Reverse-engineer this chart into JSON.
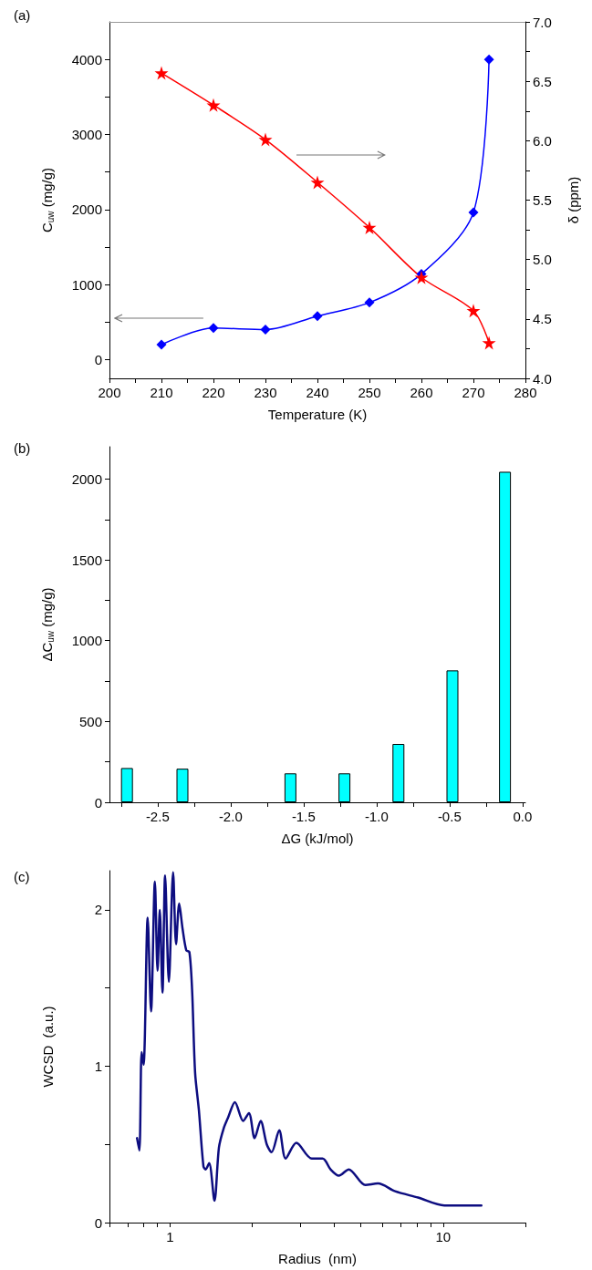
{
  "chart_data": [
    {
      "type": "line",
      "title": "(a)",
      "xlabel": "Temperature (K)",
      "ylabel": "C$_{uw}$ (mg/g)",
      "y2label": "δ (ppm)",
      "x": [
        210,
        220,
        230,
        240,
        250,
        260,
        270,
        273
      ],
      "series": [
        {
          "color": "#0000ff",
          "marker": "diamond",
          "values": [
            200,
            420,
            400,
            580,
            760,
            1140,
            1960,
            4000
          ]
        },
        {
          "color": "#ff0000",
          "marker": "star",
          "axis": "y2",
          "values": [
            6.57,
            6.3,
            6.01,
            5.65,
            5.27,
            4.85,
            4.57,
            4.3
          ]
        }
      ],
      "xlim": [
        200,
        280
      ],
      "xticks": [
        200,
        {
          "value": 205,
          "label": null
        },
        210,
        {
          "value": 215,
          "label": null
        },
        220,
        {
          "value": 225,
          "label": null
        },
        230,
        {
          "value": 235,
          "label": null
        },
        240,
        {
          "value": 245,
          "label": null
        },
        250,
        {
          "value": 255,
          "label": null
        },
        260,
        {
          "value": 265,
          "label": null
        },
        270,
        {
          "value": 275,
          "label": null
        },
        280
      ],
      "ylim": [
        -250,
        4500
      ],
      "yticks": [
        0,
        {
          "value": 500,
          "label": null
        },
        1000,
        {
          "value": 1500,
          "label": null
        },
        2000,
        {
          "value": 2500,
          "label": null
        },
        3000,
        {
          "value": 3500,
          "label": null
        },
        4000
      ],
      "y2lim": [
        4.0,
        7.0
      ],
      "y2ticks": [
        {
          "value": 4,
          "label": "4.0"
        },
        {
          "value": 4.25,
          "label": null
        },
        {
          "value": 4.5,
          "label": "4.5"
        },
        {
          "value": 4.75,
          "label": null
        },
        {
          "value": 5,
          "label": "5.0"
        },
        {
          "value": 5.25,
          "label": null
        },
        {
          "value": 5.5,
          "label": "5.5"
        },
        {
          "value": 5.75,
          "label": null
        },
        {
          "value": 6,
          "label": "6.0"
        },
        {
          "value": 6.25,
          "label": null
        },
        {
          "value": 6.5,
          "label": "6.5"
        },
        {
          "value": 6.75,
          "label": null
        },
        {
          "value": 7,
          "label": "7.0"
        }
      ],
      "grid": false,
      "line_style": "solid"
    },
    {
      "type": "bar",
      "title": "(b)",
      "xlabel": "ΔG (kJ/mol)",
      "ylabel": "ΔC$_{uw}$ (mg/g)",
      "x": [
        -2.71,
        -2.33,
        -1.59,
        -1.22,
        -0.85,
        -0.48,
        -0.12
      ],
      "values": [
        212,
        208,
        179,
        179,
        361,
        816,
        2045
      ],
      "color": "#00ffff",
      "xlim": [
        -2.83,
        0.02
      ],
      "xticks": [
        {
          "value": -2.75,
          "label": null
        },
        {
          "value": -2.5,
          "label": "-2.5"
        },
        {
          "value": -2.25,
          "label": null
        },
        {
          "value": -2,
          "label": "-2.0"
        },
        {
          "value": -1.75,
          "label": null
        },
        {
          "value": -1.5,
          "label": "-1.5"
        },
        {
          "value": -1.25,
          "label": null
        },
        {
          "value": -1,
          "label": "-1.0"
        },
        {
          "value": -0.75,
          "label": null
        },
        {
          "value": -0.5,
          "label": "-0.5"
        },
        {
          "value": -0.25,
          "label": null
        },
        {
          "value": 0,
          "label": "0.0"
        }
      ],
      "ylim": [
        0,
        2200
      ],
      "yticks": [
        0,
        {
          "value": 250,
          "label": null
        },
        500,
        {
          "value": 750,
          "label": null
        },
        1000,
        {
          "value": 1250,
          "label": null
        },
        1500,
        {
          "value": 1750,
          "label": null
        },
        2000
      ],
      "grid": false
    },
    {
      "type": "line",
      "title": "(c)",
      "xlabel": "Radius  (nm)",
      "ylabel": "WCSD  (a.u.)",
      "log": "x",
      "marker": "none",
      "x": [
        0.757,
        0.772,
        0.787,
        0.8,
        0.828,
        0.852,
        0.88,
        0.9,
        0.917,
        0.938,
        0.959,
        0.99,
        1.026,
        1.052,
        1.08,
        1.111,
        1.147,
        1.177,
        1.204,
        1.235,
        1.275,
        1.325,
        1.35,
        1.39,
        1.454,
        1.51,
        1.57,
        1.63,
        1.728,
        1.852,
        1.944,
        2.04,
        2.146,
        2.26,
        2.353,
        2.51,
        2.65,
        2.9,
        3.3,
        3.62,
        3.87,
        4.15,
        4.51,
        5.19,
        5.77,
        6.67,
        8.09,
        10.1,
        12.6,
        13.8
      ],
      "series": [
        {
          "color": "#0d0d80",
          "values": [
            0.54,
            0.46,
            1.09,
            1.01,
            1.95,
            1.35,
            2.18,
            1.61,
            2.0,
            1.47,
            2.22,
            1.54,
            2.24,
            1.78,
            2.04,
            1.88,
            1.74,
            1.73,
            1.49,
            0.96,
            0.72,
            0.36,
            0.34,
            0.38,
            0.14,
            0.48,
            0.6,
            0.67,
            0.77,
            0.65,
            0.7,
            0.54,
            0.65,
            0.5,
            0.45,
            0.59,
            0.41,
            0.51,
            0.41,
            0.41,
            0.34,
            0.3,
            0.34,
            0.24,
            0.25,
            0.2,
            0.16,
            0.11,
            0.11,
            0.11
          ]
        }
      ],
      "xlim": [
        0.6,
        20
      ],
      "xticks": [
        {
          "value": 0.6,
          "label": null
        },
        {
          "value": 0.7,
          "label": null
        },
        {
          "value": 0.8,
          "label": null
        },
        {
          "value": 0.9,
          "label": null
        },
        1,
        {
          "value": 2,
          "label": null
        },
        {
          "value": 3,
          "label": null
        },
        {
          "value": 4,
          "label": null
        },
        {
          "value": 5,
          "label": null
        },
        {
          "value": 6,
          "label": null
        },
        {
          "value": 7,
          "label": null
        },
        {
          "value": 8,
          "label": null
        },
        {
          "value": 9,
          "label": null
        },
        10,
        {
          "value": 20,
          "label": null
        }
      ],
      "ylim": [
        0,
        2.25
      ],
      "yticks": [
        0,
        {
          "value": 0.5,
          "label": null
        },
        1,
        {
          "value": 1.5,
          "label": null
        },
        2
      ],
      "grid": false,
      "line_style": "solid"
    }
  ]
}
